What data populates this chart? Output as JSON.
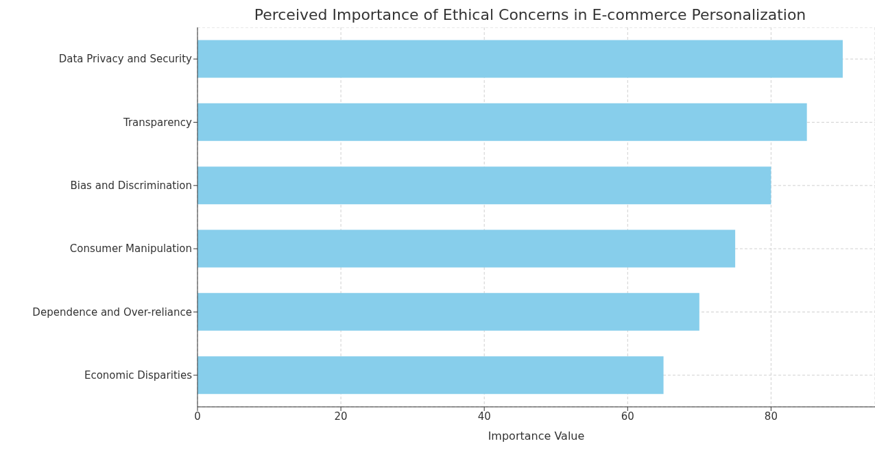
{
  "chart_data": {
    "type": "bar",
    "orientation": "horizontal",
    "title": "Perceived Importance of Ethical Concerns in E-commerce Personalization",
    "xlabel": "Importance Value",
    "categories": [
      "Data Privacy and Security",
      "Transparency",
      "Bias and Discrimination",
      "Consumer Manipulation",
      "Dependence and Over-reliance",
      "Economic Disparities"
    ],
    "values": [
      90,
      85,
      80,
      75,
      70,
      65
    ],
    "color": "#87ceeb",
    "xlim": [
      0,
      94.5
    ],
    "xticks": [
      0,
      20,
      40,
      60,
      80
    ],
    "grid": true
  }
}
